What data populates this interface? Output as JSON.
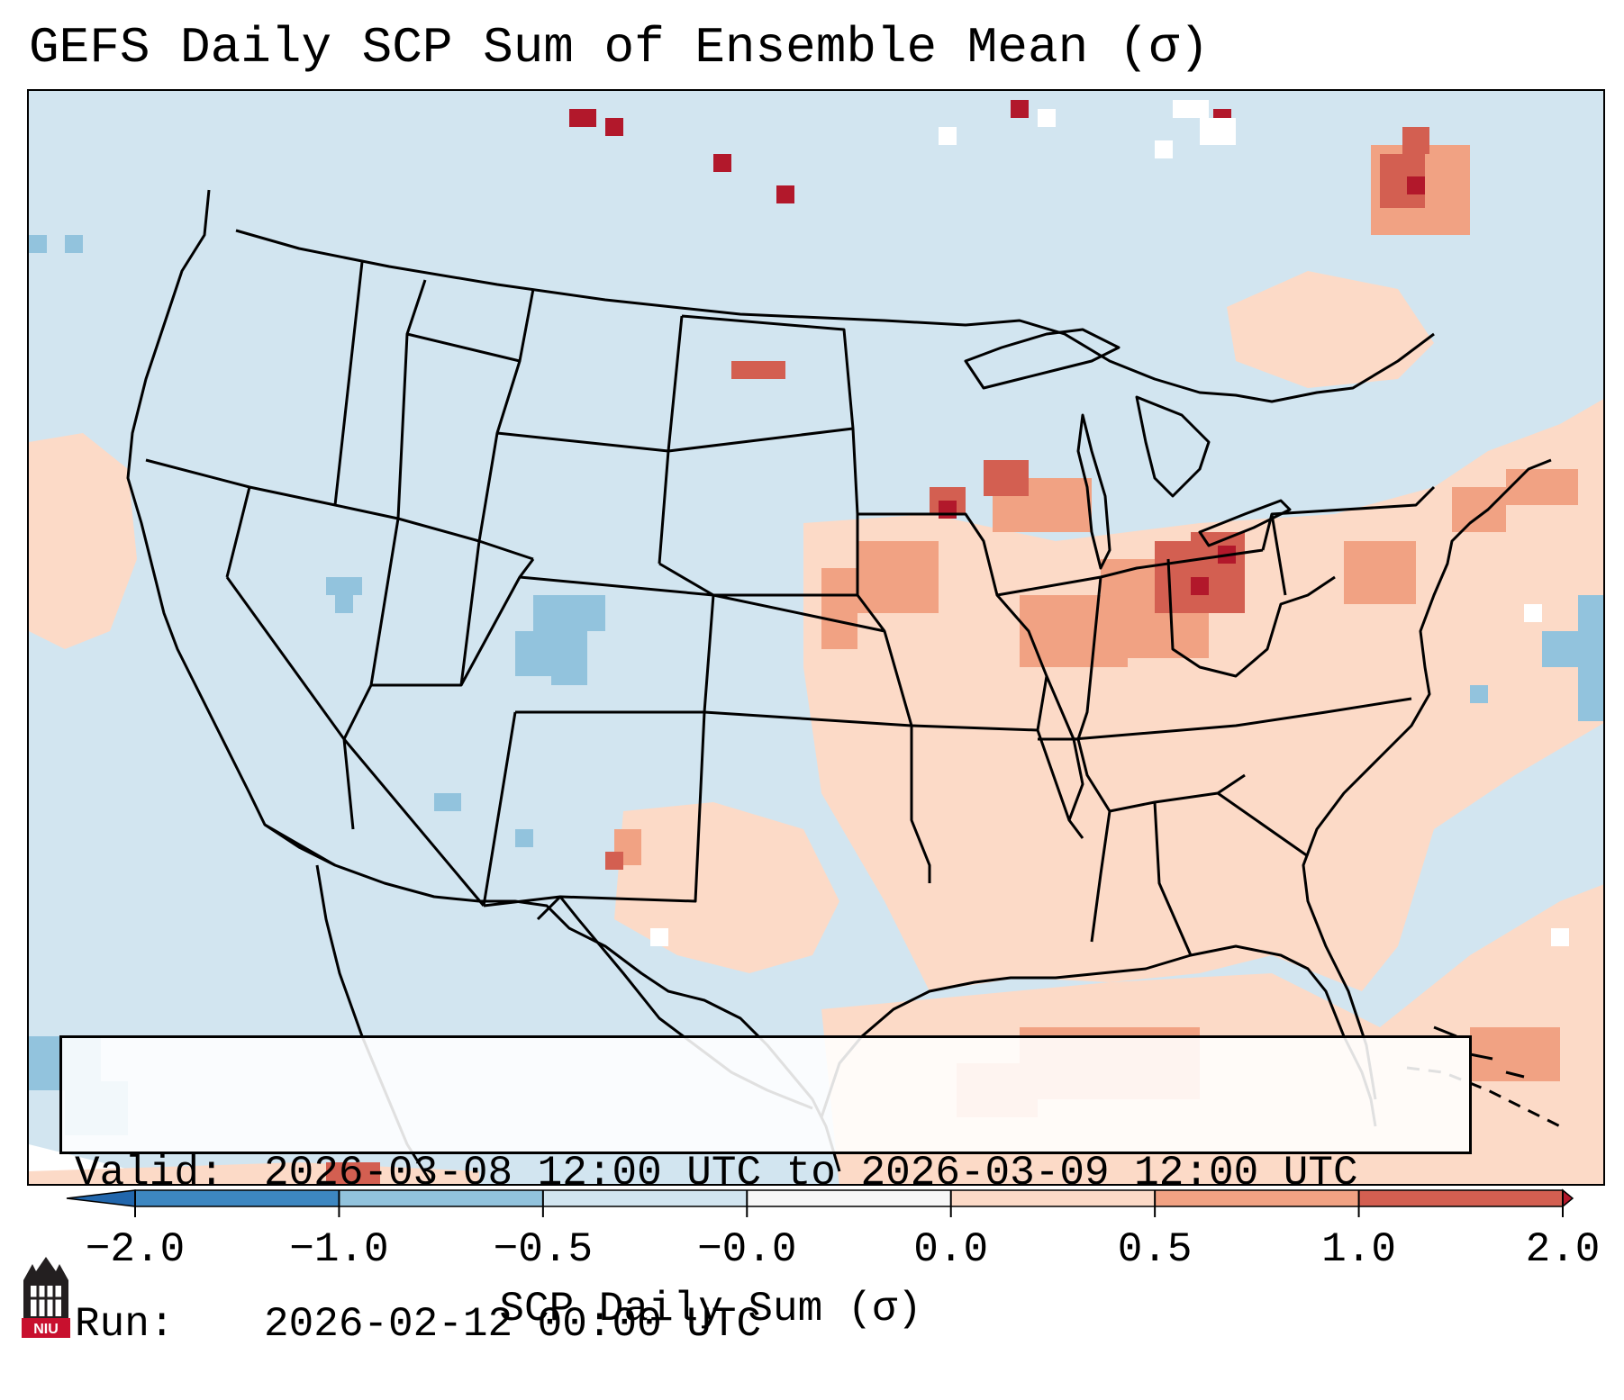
{
  "title": "GEFS Daily SCP Sum of Ensemble Mean (σ)",
  "info": {
    "valid_label": "Valid:",
    "valid_value": "2026-03-08 12:00 UTC to 2026-03-09 12:00 UTC",
    "run_label": "Run:",
    "run_value": "2026-02-12 00:00 UTC"
  },
  "colorbar": {
    "label": "SCP Daily Sum (σ)",
    "ticks": [
      "−2.0",
      "−1.0",
      "−0.5",
      "−0.0",
      "0.0",
      "0.5",
      "1.0",
      "2.0"
    ],
    "bin_colors": [
      "#3d87c1",
      "#92c3dd",
      "#d2e5f0",
      "#f7f7f7",
      "#fcdac7",
      "#f1a283",
      "#d35f51",
      "#b2182b"
    ],
    "under_color": "#2166ac",
    "over_color": "#b2182b"
  },
  "logo_text": "NIU",
  "colors": {
    "ocean_land_default": "#d2e5f0",
    "light_red": "#fcdac7",
    "mid_red": "#f1a283",
    "dark_red": "#d35f51",
    "deep_red": "#b2182b",
    "light_blue": "#92c3dd",
    "niu_red": "#c8102e"
  }
}
